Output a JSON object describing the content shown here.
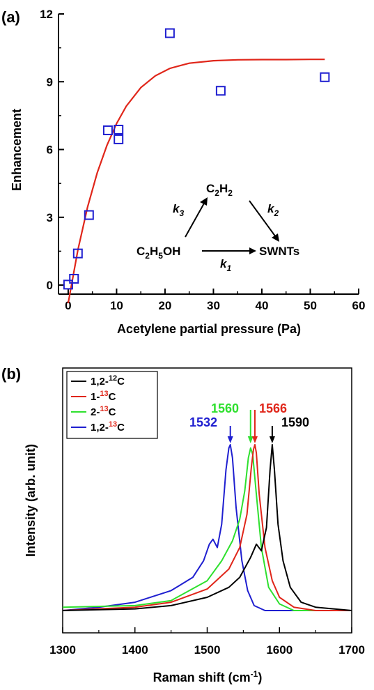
{
  "chart_data": [
    {
      "panel": "(a)",
      "type": "scatter",
      "xlabel": "Acetylene partial pressure (Pa)",
      "ylabel": "Enhancement",
      "xlim": [
        -2,
        60
      ],
      "ylim": [
        -0.4,
        12
      ],
      "xticks": [
        "0",
        "10",
        "20",
        "30",
        "40",
        "50",
        "60"
      ],
      "yticks": [
        "0",
        "3",
        "6",
        "9",
        "12"
      ],
      "series": [
        {
          "kind": "points",
          "marker": "open-square",
          "color": "#1f1fd0",
          "x": [
            0,
            1.2,
            2.0,
            4.3,
            8.2,
            10.4,
            10.4,
            21.0,
            31.5,
            53.0
          ],
          "y": [
            0.02,
            0.28,
            1.4,
            3.1,
            6.85,
            6.88,
            6.45,
            11.15,
            8.6,
            9.2
          ]
        },
        {
          "kind": "line",
          "color": "#e0261a",
          "x": [
            0,
            2,
            4,
            6,
            8,
            10,
            12,
            15,
            18,
            21,
            25,
            30,
            35,
            40,
            45,
            50,
            53
          ],
          "y": [
            -0.8,
            1.55,
            3.45,
            4.97,
            6.18,
            7.15,
            7.92,
            8.74,
            9.26,
            9.59,
            9.82,
            9.93,
            9.97,
            9.98,
            9.98,
            9.99,
            9.99
          ]
        }
      ],
      "scheme": {
        "reactant": "C2H5OH",
        "intermediate": "C2H2",
        "product": "SWNTs",
        "k1": "k1",
        "k2": "k2",
        "k3": "k3"
      }
    },
    {
      "panel": "(b)",
      "type": "line",
      "xlabel": "Raman shift (cm-1)",
      "ylabel": "Intensity (arb. unit)",
      "xlim": [
        1300,
        1700
      ],
      "xticks": [
        "1300",
        "1400",
        "1500",
        "1600",
        "1700"
      ],
      "legend_position": "top-left",
      "series": [
        {
          "name": "1,2-12C",
          "color": "#000000",
          "peak": 1590,
          "x": [
            1300,
            1400,
            1450,
            1500,
            1530,
            1545,
            1560,
            1568,
            1575,
            1582,
            1587,
            1590,
            1593,
            1598,
            1605,
            1615,
            1630,
            1650,
            1700
          ],
          "y": [
            0.0,
            0.01,
            0.03,
            0.08,
            0.14,
            0.2,
            0.32,
            0.4,
            0.36,
            0.5,
            0.85,
            1.0,
            0.85,
            0.52,
            0.3,
            0.14,
            0.05,
            0.02,
            0.0
          ]
        },
        {
          "name": "1-13C",
          "color": "#e0261a",
          "peak": 1566,
          "x": [
            1300,
            1400,
            1450,
            1500,
            1530,
            1545,
            1555,
            1561,
            1564,
            1566,
            1568,
            1572,
            1580,
            1590,
            1600,
            1620,
            1650,
            1700
          ],
          "y": [
            0.0,
            0.02,
            0.05,
            0.13,
            0.25,
            0.38,
            0.58,
            0.86,
            0.97,
            1.0,
            0.95,
            0.7,
            0.38,
            0.18,
            0.08,
            0.02,
            0.0,
            0.0
          ]
        },
        {
          "name": "2-13C",
          "color": "#2ee02e",
          "peak": 1560,
          "x": [
            1300,
            1400,
            1450,
            1500,
            1520,
            1535,
            1545,
            1552,
            1557,
            1560,
            1563,
            1568,
            1575,
            1585,
            1600,
            1620,
            1650,
            1700
          ],
          "y": [
            0.02,
            0.03,
            0.06,
            0.18,
            0.3,
            0.42,
            0.55,
            0.72,
            0.92,
            0.98,
            0.94,
            0.7,
            0.38,
            0.14,
            0.04,
            0.0,
            0.0,
            0.0
          ]
        },
        {
          "name": "1,2-13C",
          "color": "#1f1fd0",
          "peak": 1532,
          "x": [
            1300,
            1350,
            1400,
            1450,
            1480,
            1495,
            1503,
            1508,
            1514,
            1520,
            1526,
            1530,
            1532,
            1535,
            1540,
            1548,
            1556,
            1565,
            1580,
            1600,
            1700
          ],
          "y": [
            0.0,
            0.02,
            0.05,
            0.12,
            0.2,
            0.3,
            0.4,
            0.43,
            0.38,
            0.52,
            0.85,
            0.98,
            1.0,
            0.92,
            0.62,
            0.3,
            0.12,
            0.03,
            0.0,
            0.0,
            0.0
          ]
        }
      ],
      "peak_labels": [
        "1532",
        "1560",
        "1566",
        "1590"
      ],
      "unit_text": {
        "pre": "Raman shift (cm",
        "sup": "-1",
        "post": ")"
      }
    }
  ]
}
